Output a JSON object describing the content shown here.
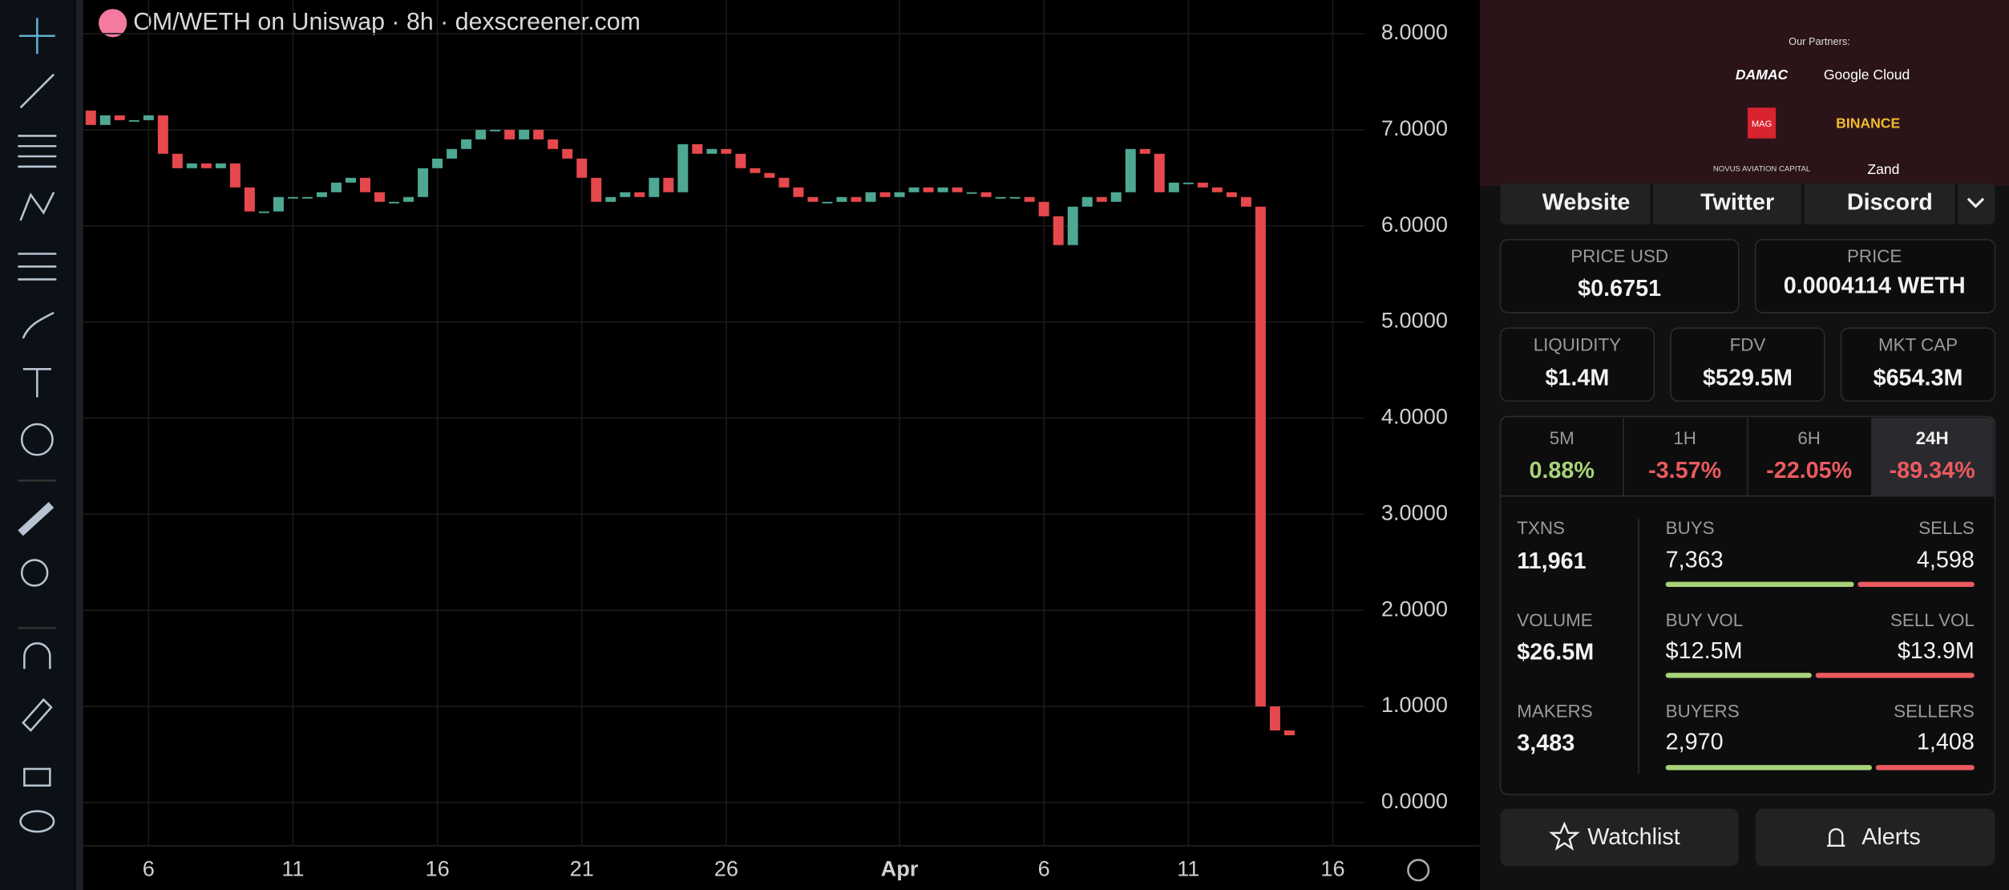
{
  "chart": {
    "type": "candlestick",
    "title": "OM/WETH on Uniswap · 8h · dexscreener.com",
    "x": [
      4,
      4.5,
      5,
      5.5,
      6,
      6.5,
      7,
      7.5,
      8,
      8.5,
      9,
      9.5,
      10,
      10.5,
      11,
      11.5,
      12,
      12.5,
      13,
      13.5,
      14,
      14.5,
      15,
      15.5,
      16,
      16.5,
      17,
      17.5,
      18,
      18.5,
      19,
      19.5,
      20,
      20.5,
      21,
      21.5,
      22,
      22.5,
      23,
      23.5,
      24,
      24.5,
      25,
      25.5,
      26,
      26.5,
      27,
      27.5,
      28,
      28.5,
      29,
      29.5,
      30,
      30.5,
      31,
      31.5,
      32,
      32.5,
      33,
      33.5,
      34,
      34.5,
      35,
      35.5,
      36,
      36.5,
      37,
      37.5,
      38,
      38.5,
      39,
      39.5,
      40,
      40.5,
      41,
      41.5,
      42,
      42.5,
      43,
      43.5,
      44,
      44.5,
      45,
      45.5
    ],
    "open": [
      7.2,
      7.05,
      7.15,
      7.1,
      7.1,
      7.15,
      6.75,
      6.6,
      6.65,
      6.6,
      6.65,
      6.4,
      6.15,
      6.15,
      6.3,
      6.3,
      6.3,
      6.35,
      6.45,
      6.5,
      6.35,
      6.25,
      6.25,
      6.3,
      6.6,
      6.7,
      6.8,
      6.9,
      7.0,
      7.0,
      6.9,
      7.0,
      6.9,
      6.8,
      6.7,
      6.5,
      6.25,
      6.3,
      6.35,
      6.3,
      6.5,
      6.35,
      6.85,
      6.75,
      6.8,
      6.75,
      6.6,
      6.55,
      6.5,
      6.4,
      6.3,
      6.25,
      6.25,
      6.3,
      6.25,
      6.35,
      6.3,
      6.35,
      6.4,
      6.35,
      6.4,
      6.35,
      6.35,
      6.3,
      6.3,
      6.3,
      6.25,
      6.1,
      5.8,
      6.2,
      6.3,
      6.25,
      6.35,
      6.8,
      6.75,
      6.35,
      6.45,
      6.45,
      6.4,
      6.35,
      6.3,
      6.2,
      1.0,
      0.75
    ],
    "close": [
      7.05,
      7.15,
      7.1,
      7.1,
      7.15,
      6.75,
      6.6,
      6.65,
      6.6,
      6.65,
      6.4,
      6.15,
      6.15,
      6.3,
      6.3,
      6.3,
      6.35,
      6.45,
      6.5,
      6.35,
      6.25,
      6.25,
      6.3,
      6.6,
      6.7,
      6.8,
      6.9,
      7.0,
      7.0,
      6.9,
      7.0,
      6.9,
      6.8,
      6.7,
      6.5,
      6.25,
      6.3,
      6.35,
      6.3,
      6.5,
      6.35,
      6.85,
      6.75,
      6.8,
      6.75,
      6.6,
      6.55,
      6.5,
      6.4,
      6.3,
      6.25,
      6.25,
      6.3,
      6.25,
      6.35,
      6.3,
      6.35,
      6.4,
      6.35,
      6.4,
      6.35,
      6.35,
      6.3,
      6.3,
      6.3,
      6.25,
      6.1,
      5.8,
      6.2,
      6.3,
      6.25,
      6.35,
      6.8,
      6.75,
      6.35,
      6.45,
      6.45,
      6.4,
      6.35,
      6.3,
      6.2,
      1.0,
      0.75,
      0.7
    ],
    "up_color": "#4ea892",
    "down_color": "#e5484d",
    "xlim": [
      3.74,
      48.1
    ],
    "xticks": [
      6,
      11,
      16,
      21,
      26,
      {
        "value": 32,
        "label": "Apr"
      },
      {
        "value": 37,
        "label": "6"
      },
      {
        "value": 42,
        "label": "11"
      },
      {
        "value": 47,
        "label": "16"
      }
    ],
    "ylim": [
      -0.45,
      8.35
    ],
    "yticks": [
      {
        "value": 0,
        "label": "0.0000"
      },
      {
        "value": 1,
        "label": "1.0000"
      },
      {
        "value": 2,
        "label": "2.0000"
      },
      {
        "value": 3,
        "label": "3.0000"
      },
      {
        "value": 4,
        "label": "4.0000"
      },
      {
        "value": 5,
        "label": "5.0000"
      },
      {
        "value": 6,
        "label": "6.0000"
      },
      {
        "value": 7,
        "label": "7.0000"
      },
      {
        "value": 8,
        "label": "8.0000"
      }
    ],
    "grid": true
  },
  "partners": {
    "title": "Our Partners:",
    "names": [
      "DAMAC",
      "Google Cloud",
      "MAG",
      "BINANCE",
      "NOVUS AVIATION CAPITAL",
      "Zand"
    ]
  },
  "links": [
    "Website",
    "Twitter",
    "Discord"
  ],
  "price_usd": {
    "label": "PRICE USD",
    "value": "$0.6751"
  },
  "price": {
    "label": "PRICE",
    "value": "0.0004114 WETH"
  },
  "liquidity": {
    "label": "LIQUIDITY",
    "value": "$1.4M"
  },
  "fdv": {
    "label": "FDV",
    "value": "$529.5M"
  },
  "mkt_cap": {
    "label": "MKT CAP",
    "value": "$654.3M"
  },
  "changes": [
    {
      "label": "5M",
      "value": "0.88%"
    },
    {
      "label": "1H",
      "value": "-3.57%"
    },
    {
      "label": "6H",
      "value": "-22.05%"
    },
    {
      "label": "24H",
      "value": "-89.34%"
    }
  ],
  "txns": {
    "label": "TXNS",
    "value": "11,961"
  },
  "buys": {
    "label": "BUYS",
    "value": "7,363"
  },
  "sells": {
    "label": "SELLS",
    "value": "4,598"
  },
  "volume": {
    "label": "VOLUME",
    "value": "$26.5M"
  },
  "buy_vol": {
    "label": "BUY VOL",
    "value": "$12.5M"
  },
  "sell_vol": {
    "label": "SELL VOL",
    "value": "$13.9M"
  },
  "makers": {
    "label": "MAKERS",
    "value": "3,483"
  },
  "buyers": {
    "label": "BUYERS",
    "value": "2,970"
  },
  "sellers": {
    "label": "SELLERS",
    "value": "1,408"
  },
  "buttons": [
    "Watchlist",
    "Alerts"
  ]
}
